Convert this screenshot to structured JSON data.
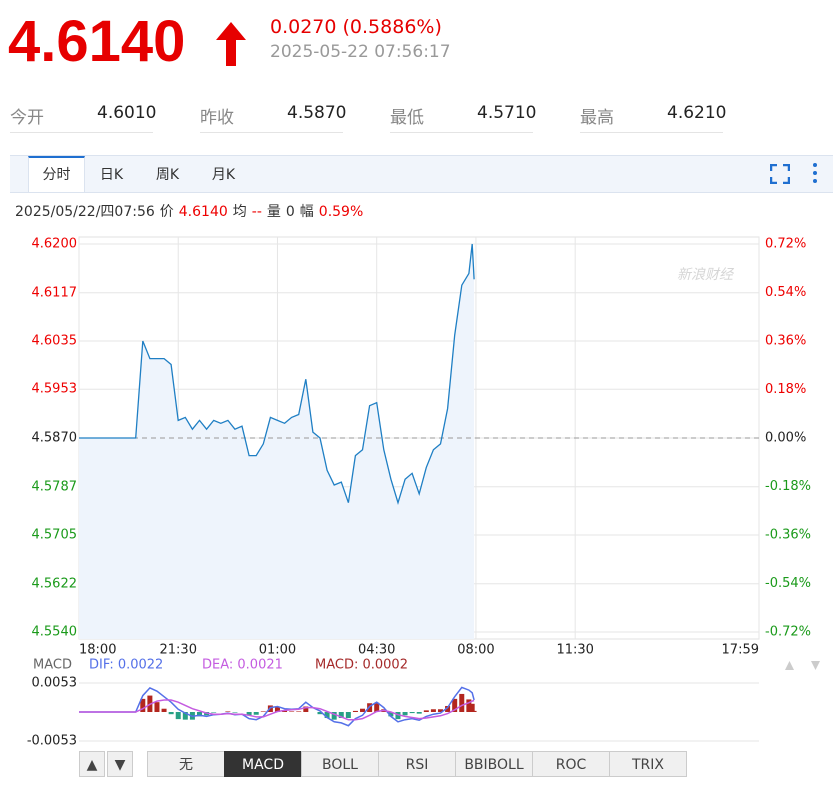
{
  "header": {
    "price": "4.6140",
    "change": "0.0270 (0.5886%)",
    "time": "2025-05-22 07:56:17"
  },
  "stats": [
    {
      "label": "今开",
      "value": "4.6010"
    },
    {
      "label": "昨收",
      "value": "4.5870"
    },
    {
      "label": "最低",
      "value": "4.5710"
    },
    {
      "label": "最高",
      "value": "4.6210"
    }
  ],
  "tabs": [
    "分时",
    "日K",
    "周K",
    "月K"
  ],
  "active_tab": 0,
  "info_bar": [
    {
      "text": "2025/05/22/四07:56",
      "color": "#333"
    },
    {
      "text": "价",
      "color": "#333"
    },
    {
      "text": "4.6140",
      "color": "#e00"
    },
    {
      "text": "均",
      "color": "#333"
    },
    {
      "text": "--",
      "color": "#e00"
    },
    {
      "text": "量",
      "color": "#333"
    },
    {
      "text": "0",
      "color": "#333"
    },
    {
      "text": "幅",
      "color": "#333"
    },
    {
      "text": "0.59%",
      "color": "#e00"
    }
  ],
  "watermark": "新浪财经",
  "chart_data": [
    {
      "type": "line",
      "color": "#1f7fc4",
      "area_color": "#eef4fc",
      "grid": true,
      "reference_line": 4.587,
      "x": [
        0,
        15,
        30,
        45,
        60,
        75,
        90,
        105,
        120,
        135,
        150,
        165,
        180,
        195,
        210,
        225,
        240,
        255,
        270,
        285,
        300,
        315,
        330,
        345,
        360,
        375,
        390,
        405,
        420,
        435,
        450,
        465,
        480,
        495,
        510,
        525,
        540,
        555,
        570,
        585,
        600,
        615,
        630,
        645,
        660,
        675,
        690,
        705,
        720,
        735,
        750,
        765,
        780,
        795,
        810,
        825,
        832,
        836
      ],
      "values": [
        4.587,
        4.587,
        4.587,
        4.587,
        4.587,
        4.587,
        4.587,
        4.587,
        4.587,
        4.6035,
        4.6005,
        4.6005,
        4.6005,
        4.5995,
        4.59,
        4.5905,
        4.5885,
        4.59,
        4.5885,
        4.59,
        4.5895,
        4.59,
        4.5885,
        4.589,
        4.584,
        4.584,
        4.586,
        4.5905,
        4.59,
        4.5895,
        4.5905,
        4.591,
        4.597,
        4.588,
        4.587,
        4.5815,
        4.579,
        4.5795,
        4.576,
        4.584,
        4.585,
        4.5925,
        4.593,
        4.585,
        4.58,
        4.576,
        4.58,
        4.581,
        4.5775,
        4.582,
        4.585,
        4.586,
        4.592,
        4.6045,
        4.613,
        4.615,
        4.62,
        4.614
      ],
      "xlim": [
        0,
        1439
      ],
      "xticks": [
        {
          "value": 0,
          "label": "18:00"
        },
        {
          "value": 210,
          "label": "21:30"
        },
        {
          "value": 420,
          "label": "01:00"
        },
        {
          "value": 630,
          "label": "04:30"
        },
        {
          "value": 840,
          "label": "08:00"
        },
        {
          "value": 1050,
          "label": "11:30"
        },
        {
          "value": 1439,
          "label": "17:59"
        }
      ],
      "ylim": [
        4.554,
        4.62
      ],
      "yticks": [
        {
          "value": 4.62,
          "label": "4.6200"
        },
        4.6117,
        4.6035,
        4.5953,
        {
          "value": 4.587,
          "label": "4.5870"
        },
        4.5787,
        {
          "value": 4.5705,
          "label": "4.5705"
        },
        4.5622,
        {
          "value": 4.554,
          "label": "4.5540"
        }
      ],
      "y2lim": [
        -0.72,
        0.72
      ],
      "y2ticks": [
        {
          "value": 0.72,
          "label": "0.72%"
        },
        {
          "value": 0.54,
          "label": "0.54%"
        },
        {
          "value": 0.36,
          "label": "0.36%"
        },
        {
          "value": 0.18,
          "label": "0.18%"
        },
        {
          "value": 0,
          "label": "0.00%"
        },
        {
          "value": -0.18,
          "label": "-0.18%"
        },
        {
          "value": -0.36,
          "label": "-0.36%"
        },
        {
          "value": -0.54,
          "label": "-0.54%"
        },
        {
          "value": -0.72,
          "label": "-0.72%"
        }
      ]
    },
    {
      "type": "macd",
      "title": "MACD",
      "positive_color": "#b3261e",
      "negative_color": "#27a085",
      "x": [
        0,
        15,
        30,
        45,
        60,
        75,
        90,
        105,
        120,
        135,
        150,
        165,
        180,
        195,
        210,
        225,
        240,
        255,
        270,
        285,
        300,
        315,
        330,
        345,
        360,
        375,
        390,
        405,
        420,
        435,
        450,
        465,
        480,
        495,
        510,
        525,
        540,
        555,
        570,
        585,
        600,
        615,
        630,
        645,
        660,
        675,
        690,
        705,
        720,
        735,
        750,
        765,
        780,
        795,
        810,
        825,
        832,
        836
      ],
      "xlim": [
        0,
        1439
      ],
      "ylim": [
        -0.0053,
        0.0053
      ],
      "yticks": [
        0.0053,
        -0.0053
      ],
      "series": [
        {
          "name": "DIF: 0.0022",
          "color": "#5470e8",
          "kind": "line",
          "values": [
            0,
            0,
            0,
            0,
            0,
            0,
            0,
            0,
            0,
            0.003,
            0.0044,
            0.0038,
            0.0028,
            0.0018,
            0.0005,
            -0.0002,
            -0.0008,
            -0.0006,
            -0.0008,
            -0.0005,
            -0.0004,
            -0.0002,
            -0.0005,
            -0.0004,
            -0.0012,
            -0.0014,
            -0.0008,
            0.0008,
            0.001,
            0.0006,
            0.0005,
            0.0006,
            0.0018,
            0.0008,
            0.0002,
            -0.001,
            -0.0018,
            -0.002,
            -0.0025,
            -0.0012,
            -0.0006,
            0.001,
            0.0018,
            0.0008,
            -0.0008,
            -0.0018,
            -0.0014,
            -0.0012,
            -0.0015,
            -0.0008,
            -0.0004,
            -0.0002,
            0.0008,
            0.0028,
            0.0045,
            0.004,
            0.0035,
            0.0022
          ]
        },
        {
          "name": "DEA: 0.0021",
          "color": "#c45ce0",
          "kind": "line",
          "values": [
            0,
            0,
            0,
            0,
            0,
            0,
            0,
            0,
            0,
            0.0006,
            0.0014,
            0.002,
            0.0022,
            0.0022,
            0.0018,
            0.0012,
            0.0006,
            0.0002,
            -0.0002,
            -0.0004,
            -0.0004,
            -0.0003,
            -0.0004,
            -0.0004,
            -0.0006,
            -0.0009,
            -0.0009,
            -0.0004,
            0.0001,
            0.0003,
            0.0004,
            0.0005,
            0.0008,
            0.0008,
            0.0006,
            0.0001,
            -0.0004,
            -0.0009,
            -0.0014,
            -0.0014,
            -0.0012,
            -0.0006,
            0.0001,
            0.0003,
            0,
            -0.0005,
            -0.0008,
            -0.001,
            -0.0012,
            -0.0011,
            -0.0009,
            -0.0007,
            -0.0003,
            0.0004,
            0.0012,
            0.0017,
            0.002,
            0.0021
          ]
        },
        {
          "name": "MACD: 0.0002",
          "color": "#a52a2a",
          "kind": "bar",
          "values": [
            0,
            0,
            0,
            0,
            0,
            0,
            0,
            0,
            0,
            0.0024,
            0.003,
            0.0018,
            0.0006,
            -0.0004,
            -0.0013,
            -0.0014,
            -0.0014,
            -0.0008,
            -0.0006,
            -0.0001,
            0,
            0.0001,
            -0.0001,
            0,
            -0.0006,
            -0.0005,
            0.0001,
            0.0012,
            0.0009,
            0.0003,
            0.0001,
            0.0001,
            0.001,
            0,
            -0.0004,
            -0.0011,
            -0.0014,
            -0.0011,
            -0.0011,
            0.0002,
            0.0006,
            0.0016,
            0.0017,
            0.0005,
            -0.0008,
            -0.0013,
            -0.0006,
            -0.0002,
            -0.0003,
            0.0003,
            0.0005,
            0.0005,
            0.0011,
            0.0024,
            0.0033,
            0.0023,
            0.0015,
            0.0002
          ]
        }
      ]
    }
  ],
  "indicator_buttons": [
    "无",
    "MACD",
    "BOLL",
    "RSI",
    "BBIBOLL",
    "ROC",
    "TRIX"
  ],
  "active_indicator": 1
}
